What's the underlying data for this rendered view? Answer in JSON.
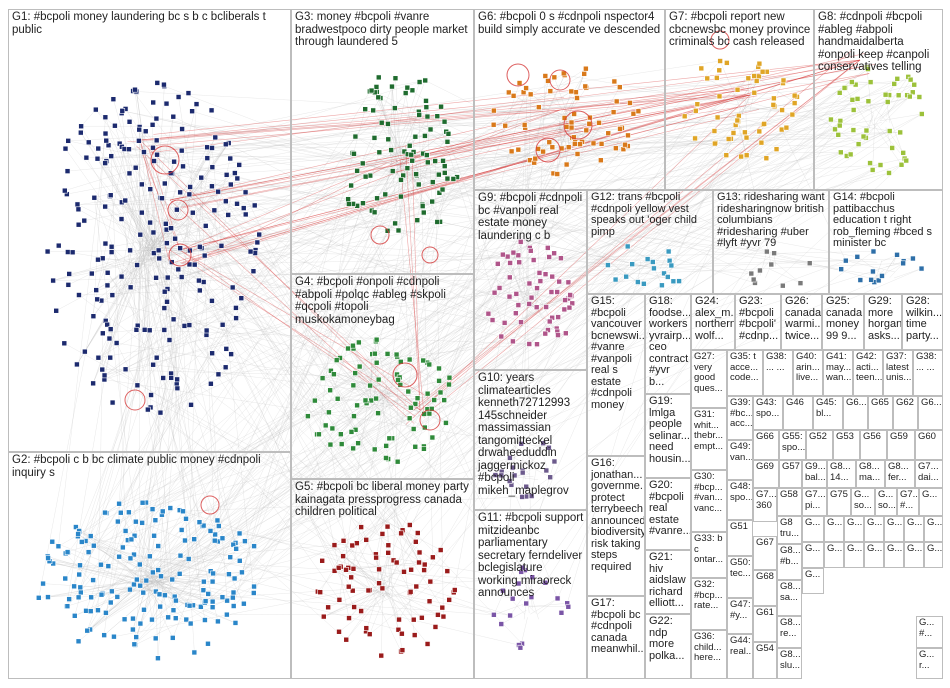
{
  "groups": {
    "G1": "G1: #bcpoli money laundering bc s b c bcliberals t public",
    "G2": "G2: #bcpoli c b bc climate public money #cdnpoli inquiry s",
    "G3": "G3: money #bcpoli #vanre bradwestpoco dirty people market through laundered 5",
    "G4": "G4: #bcpoli #onpoli #cdnpoli #abpoli #polqc #ableg #skpoli #qcpoli #topoli muskokamoneybag",
    "G5": "G5: #bcpoli bc liberal money party kainagata pressprogress canada children political",
    "G6": "G6: #bcpoli 0 s #cdnpoli nspector4 build simply accurate ve descended",
    "G7": "G7: #bcpoli report new cbcnewsbc money province criminals bc cash released",
    "G8": "G8: #cdnpoli #bcpoli #ableg #abpoli handmaidalberta #onpoli keep #canpoli conservatives telling",
    "G9": "G9: #bcpoli #cdnpoli bc #vanpoli real estate money laundering c b",
    "G10": "G10: years climatearticles kenneth72712993 145schneider massimassian tangomitteckel drwaheeduddin jaggermickoz #bcpoli mikeh_maplegrov",
    "G11": "G11: #bcpoli support mitzideanbc parliamentary secretary ferndeliver bclegislature working miraoreck announces",
    "G12": "G12: trans #bcpoli #cdnpoli yellow vest speaks out 'oger child pimp",
    "G13": "G13: ridesharing want ridesharingnow british columbians #ridesharing #uber #lyft #yvr 79",
    "G14": "G14: #bcpoli pattibacchus education t right rob_fleming #bced s minister bc",
    "G15": "G15: #bcpoli vancouver bcnewswi... #vanre #vanpoli real s estate #cdnpoli money",
    "G16": "G16: jonathan... governme... protect terrybeech announced biodiversity risk taking steps required",
    "G17": "G17: #bcpoli bc #cdnpoli canada meanwhil...",
    "G18": "G18: foodse... workers yvrairp... ceo contract #yvr b...",
    "G19": "G19: lmlga people selinar... need housin...",
    "G20": "G20: #bcpoli real estate #vanre...",
    "G21": "G21: hiv aidslaw richard elliott...",
    "G22": "G22: ndp more polka...",
    "G23": "G23: #bcpoli #bcpoli' #cdnp...",
    "G24": "G24: alex_m... northern wolf...",
    "G25": "G25: canada money 99 9...",
    "G26": "G26: canada warmi... twice...",
    "G27": "G27: very good ques...",
    "G28": "G28: wilkin... time party...",
    "G29": "G29: more horgan asks...",
    "G30": "G30: #bcp... #van... vanc...",
    "G31": "G31: whit... thebr... empt...",
    "G32": "G32: #bcp... rate...",
    "G33": "G33: b c ontar...",
    "G35": "G35: t acce... code...",
    "G36": "G36: child... here...",
    "G37": "G37: latest unis...",
    "G38": "G38: ... ...",
    "G39": "G39: #bc... acc...",
    "G40": "G40: arin... live...",
    "G41": "G41: may... wan...",
    "G42": "G42: acti... teen...",
    "G43": "G43: spo...",
    "G44": "G44: real...",
    "G45": "G45: bl...",
    "G46": "G46",
    "G47": "G47: #y...",
    "G48": "G48: spo...",
    "G49": "G49: van...",
    "G50": "G50: tec...",
    "G51": "G51",
    "G52": "G52",
    "G53": "G53",
    "G54": "G54",
    "G55": "G55: spo...",
    "G56": "G56",
    "G57": "G57",
    "G58": "G58",
    "G59": "G59",
    "G60": "G60",
    "G61": "G61",
    "G62": "G62",
    "G63": "G6...",
    "G64": "G6...",
    "G65": "G65",
    "G66": "G66",
    "G67": "G67",
    "G68": "G68",
    "G69": "G69",
    "G73": "G7... 360",
    "G75": "G75",
    "misc_a": "G9... bal...",
    "misc_b": "G8... 14...",
    "misc_c": "G8... ma...",
    "misc_d": "G8... fer...",
    "misc_e": "G7... dai...",
    "misc_f": "G7... pi...",
    "misc_g": "G... so...",
    "misc_h": "G... so...",
    "misc_i": "G8... #b...",
    "misc_j": "G8... re...",
    "misc_k": "G8... slu...",
    "misc_l": "G... #...",
    "misc_m": "G... r...",
    "misc_n": "G8... sa...",
    "misc_o": "G7... #...",
    "misc_p": "G8 tru...",
    "misc_q": "G7... 360",
    "misc_r": "G...",
    "misc_s": "G...",
    "misc_t": "G...",
    "misc_u": "G...",
    "misc_v": "G...",
    "misc_w": "G...",
    "misc_x": "G...",
    "misc_y": "G...",
    "misc_z": "G...",
    "misc_aa": "G...",
    "misc_ab": "G...",
    "misc_ac": "G...",
    "misc_ad": "G...",
    "misc_ae": "G...",
    "misc_af": "G...",
    "misc_ag": "G..."
  },
  "colors": {
    "G1": "#1c2a6e",
    "G2": "#2a86c9",
    "G3": "#1f6b2e",
    "G4": "#2f8a3a",
    "G5": "#9a1b1b",
    "G6": "#d9791a",
    "G7": "#e0a526",
    "G8": "#9cc13a",
    "G9": "#b0558a",
    "G10": "#6c5a8c",
    "G11": "#7a55a6",
    "G12": "#3a9ac0",
    "G13": "#7a7a7a",
    "G14": "#2e6fa8",
    "edge": "#bdbdbd",
    "edge_red": "#d63b3b"
  }
}
